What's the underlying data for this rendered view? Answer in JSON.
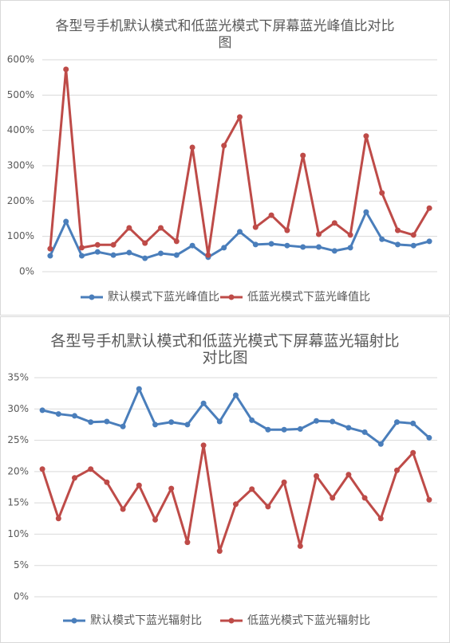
{
  "chart_data": [
    {
      "type": "line",
      "title": "各型号手机默认模式和低蓝光模式下屏幕蓝光峰值比对比图",
      "categories": [
        null,
        null,
        null,
        null,
        null,
        null,
        null,
        null,
        null,
        null,
        null,
        null,
        null,
        null,
        null,
        null,
        null,
        null,
        null,
        null,
        null,
        null,
        null,
        null,
        null
      ],
      "series": [
        {
          "name": "默认模式下蓝光峰值比",
          "color": "#4a7ebb",
          "values": [
            45,
            142,
            45,
            56,
            47,
            54,
            38,
            52,
            47,
            74,
            41,
            68,
            113,
            77,
            79,
            74,
            70,
            70,
            59,
            68,
            169,
            92,
            77,
            74,
            86
          ]
        },
        {
          "name": "低蓝光模式下蓝光峰值比",
          "color": "#be4b48",
          "values": [
            65,
            573,
            68,
            76,
            76,
            124,
            81,
            124,
            86,
            352,
            47,
            357,
            438,
            126,
            160,
            117,
            329,
            106,
            138,
            104,
            384,
            223,
            117,
            104,
            180
          ]
        }
      ],
      "ylim": [
        0,
        600
      ],
      "yticks": [
        {
          "value": 0,
          "label": "0%"
        },
        {
          "value": 100,
          "label": "100%"
        },
        {
          "value": 200,
          "label": "200%"
        },
        {
          "value": 300,
          "label": "300%"
        },
        {
          "value": 400,
          "label": "400%"
        },
        {
          "value": 500,
          "label": "500%"
        },
        {
          "value": 600,
          "label": "600%"
        }
      ],
      "grid": true,
      "legend": "bottom"
    },
    {
      "type": "line",
      "title": "各型号手机默认模式和低蓝光模式下屏幕蓝光辐射比对比图",
      "categories": [
        null,
        null,
        null,
        null,
        null,
        null,
        null,
        null,
        null,
        null,
        null,
        null,
        null,
        null,
        null,
        null,
        null,
        null,
        null,
        null,
        null,
        null,
        null,
        null,
        null
      ],
      "series": [
        {
          "name": "默认模式下蓝光辐射比",
          "color": "#4a7ebb",
          "values": [
            29.8,
            29.2,
            28.9,
            27.9,
            28.0,
            27.2,
            33.2,
            27.5,
            27.9,
            27.5,
            30.9,
            28.0,
            32.2,
            28.2,
            26.7,
            26.7,
            26.8,
            28.1,
            28.0,
            27.0,
            26.3,
            24.4,
            27.9,
            27.7,
            25.4
          ]
        },
        {
          "name": "低蓝光模式下蓝光辐射比",
          "color": "#be4b48",
          "values": [
            20.4,
            12.5,
            19.0,
            20.4,
            18.3,
            14.0,
            17.8,
            12.3,
            17.3,
            8.7,
            24.2,
            7.3,
            14.8,
            17.2,
            14.4,
            18.3,
            8.1,
            19.3,
            15.8,
            19.5,
            15.8,
            12.5,
            20.2,
            23.0,
            15.5
          ]
        }
      ],
      "ylim": [
        0,
        35
      ],
      "yticks": [
        {
          "value": 0,
          "label": "0%"
        },
        {
          "value": 5,
          "label": "5%"
        },
        {
          "value": 10,
          "label": "10%"
        },
        {
          "value": 15,
          "label": "15%"
        },
        {
          "value": 20,
          "label": "20%"
        },
        {
          "value": 25,
          "label": "25%"
        },
        {
          "value": 30,
          "label": "30%"
        },
        {
          "value": 35,
          "label": "35%"
        }
      ],
      "grid": true,
      "legend": "bottom"
    }
  ]
}
